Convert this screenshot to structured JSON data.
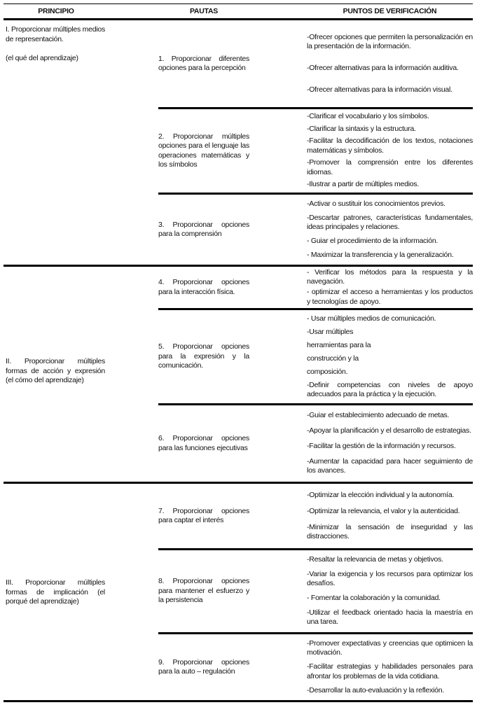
{
  "headers": {
    "principio": "PRINCIPIO",
    "pautas": "PAUTAS",
    "puntos": "PUNTOS DE VERIFICACIÓN"
  },
  "principles": [
    {
      "lines": [
        "I. Proporcionar múltiples medios de representación.",
        "(el qué del aprendizaje)"
      ]
    },
    {
      "lines": [
        "II. Proporcionar múltiples formas de acción y expresión (el cómo del aprendizaje)"
      ]
    },
    {
      "lines": [
        "III. Proporcionar múltiples formas de implicación (el porqué del aprendizaje)"
      ]
    }
  ],
  "rows": [
    {
      "pauta": "1. Proporcionar diferentes opciones para la percepción",
      "items": [
        "-Ofrecer opciones que permiten la personalización en la presentación de la información.",
        "-Ofrecer alternativas para la información auditiva.",
        "-Ofrecer alternativas para la información visual."
      ]
    },
    {
      "pauta": "2. Proporcionar múltiples opciones para el lenguaje las operaciones matemáticas y los símbolos",
      "items": [
        "-Clarificar el vocabulario y los símbolos.",
        "-Clarificar la sintaxis y la estructura.",
        "-Facilitar la decodificación de los textos, notaciones matemáticas y símbolos.",
        "-Promover la comprensión entre los diferentes idiomas.",
        "-Ilustrar a partir de múltiples medios."
      ]
    },
    {
      "pauta": "3. Proporcionar opciones para la comprensión",
      "items": [
        "-Activar o sustituir los conocimientos previos.",
        "-Descartar patrones, características fundamentales, ideas principales y relaciones.",
        "- Guiar el procedimiento de la información.",
        "- Maximizar la transferencia y la generalización."
      ]
    },
    {
      "pauta": "4. Proporcionar opciones para la interacción física.",
      "items": [
        "- Verificar los métodos para la respuesta y la navegación.",
        "- optimizar el acceso a herramientas y los productos y tecnologías de apoyo."
      ]
    },
    {
      "pauta": "5. Proporcionar opciones para la expresión y la comunicación.",
      "items": [
        "- Usar múltiples medios de comunicación.",
        "-Usar múltiples",
        "herramientas para la",
        "construcción y la",
        "composición.",
        "-Definir competencias con niveles de apoyo adecuados para la práctica y la ejecución."
      ]
    },
    {
      "pauta": "6. Proporcionar opciones para las funciones ejecutivas",
      "items": [
        "-Guiar el establecimiento adecuado de metas.",
        "-Apoyar la planificación y el desarrollo de estrategias.",
        "-Facilitar la gestión de la información y recursos.",
        "-Aumentar la capacidad para hacer seguimiento de los avances."
      ]
    },
    {
      "pauta": "7. Proporcionar opciones para captar el interés",
      "items": [
        "-Optimizar la elección individual y la autonomía.",
        "-Optimizar la relevancia, el valor y la autenticidad.",
        "-Minimizar la sensación de inseguridad y las distracciones."
      ]
    },
    {
      "pauta": "8. Proporcionar opciones para mantener el esfuerzo y la persistencia",
      "items": [
        "-Resaltar la relevancia de metas y objetivos.",
        "-Variar la exigencia y los recursos para optimizar los desafíos.",
        "- Fomentar la colaboración y la comunidad.",
        "-Utilizar el feedback orientado hacia la maestría en una tarea."
      ]
    },
    {
      "pauta": "9. Proporcionar opciones para la auto – regulación",
      "items": [
        "-Promover expectativas y creencias que optimicen la motivación.",
        "-Facilitar estrategias y habilidades personales para afrontar los problemas de la vida cotidiana.",
        "-Desarrollar la auto-evaluación y la reflexión."
      ]
    }
  ]
}
